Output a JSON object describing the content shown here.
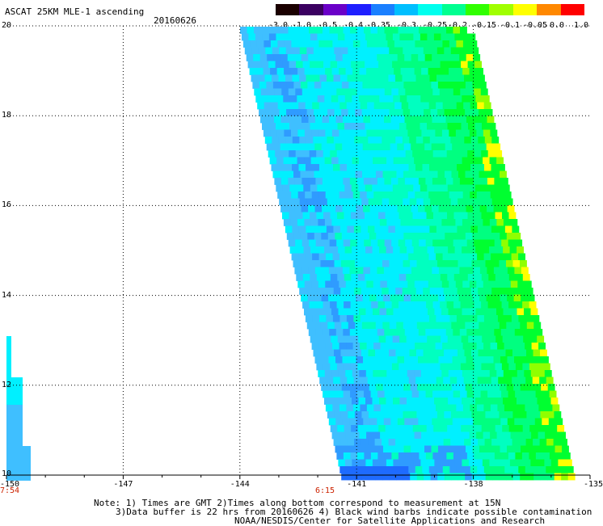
{
  "header": {
    "title": "ASCAT 25KM MLE-1 ascending",
    "date": "20160626"
  },
  "colorbar": {
    "labels": [
      "-3.0",
      "-1.0",
      "-0.5",
      "-0.4",
      "-0.35",
      "-0.3",
      "-0.25",
      "-0.2",
      "-0.15",
      "-0.1",
      "-0.05",
      "0.0",
      "1.0"
    ],
    "colors": [
      "#1a0000",
      "#3a0060",
      "#6a00c8",
      "#1e1eff",
      "#1a7fff",
      "#00bfff",
      "#00ffee",
      "#00ff90",
      "#30ff00",
      "#a0ff00",
      "#ffff00",
      "#ff8800",
      "#ff0000"
    ]
  },
  "map": {
    "lat_labels": [
      "20",
      "18",
      "16",
      "14",
      "12",
      "10"
    ],
    "lon_labels": [
      "-150",
      "-147",
      "-144",
      "-141",
      "-138",
      "-135"
    ],
    "time_labels": [
      "7:54",
      "6:15"
    ],
    "lat_range": [
      10,
      20
    ],
    "lon_range": [
      -150,
      -135
    ],
    "grid": true,
    "palette": {
      "blue_deep": "#1e6bff",
      "blue": "#2f9bff",
      "blue_light": "#3fbfff",
      "cyan": "#00f0ff",
      "cyan_green": "#00ffc0",
      "green_light": "#00ff80",
      "green": "#00ff30",
      "yellow_green": "#90ff00",
      "yellow": "#ffff00"
    }
  },
  "footer": {
    "note1": "Note: 1) Times are GMT 2)Times along bottom correspond to measurement at 15N",
    "note2": "3)Data buffer is 22 hrs from 20160626 4) Black wind barbs indicate possible contamination",
    "credit": "NOAA/NESDIS/Center for Satellite Applications and Research"
  }
}
